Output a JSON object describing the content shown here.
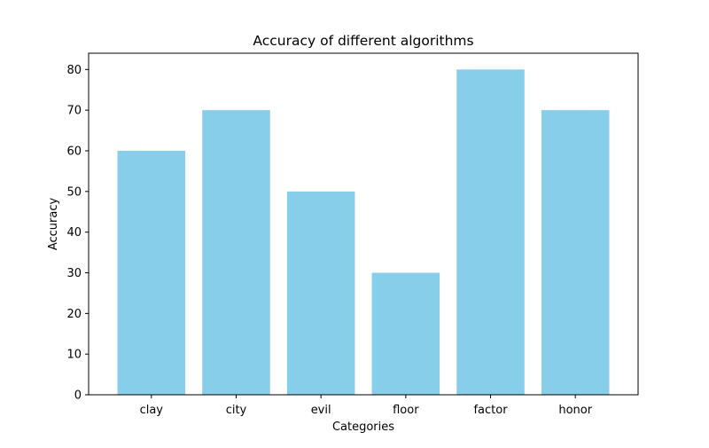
{
  "chart_data": {
    "type": "bar",
    "title": "Accuracy of different algorithms",
    "xlabel": "Categories",
    "ylabel": "Accuracy",
    "categories": [
      "clay",
      "city",
      "evil",
      "floor",
      "factor",
      "honor"
    ],
    "values": [
      60,
      70,
      50,
      30,
      80,
      70
    ],
    "ylim": [
      0,
      84
    ],
    "yticks": [
      0,
      10,
      20,
      30,
      40,
      50,
      60,
      70,
      80
    ],
    "grid": false,
    "legend": "none",
    "bar_color": "#87CEEB"
  }
}
